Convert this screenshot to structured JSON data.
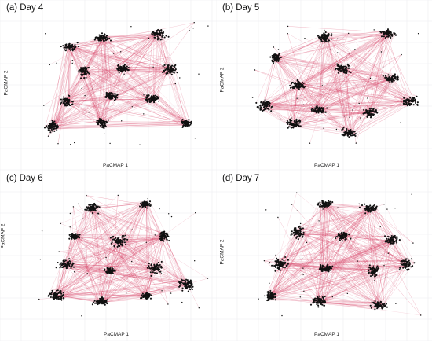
{
  "chart_data": [
    {
      "type": "scatter",
      "title": "(a) Day 4",
      "xlabel": "PaCMAP 1",
      "ylabel": "PaCMAP 2",
      "grid": true,
      "legend": "none",
      "clusters": [
        {
          "x": 0.22,
          "y": 0.78
        },
        {
          "x": 0.4,
          "y": 0.85
        },
        {
          "x": 0.72,
          "y": 0.88
        },
        {
          "x": 0.3,
          "y": 0.6
        },
        {
          "x": 0.52,
          "y": 0.62
        },
        {
          "x": 0.78,
          "y": 0.62
        },
        {
          "x": 0.2,
          "y": 0.38
        },
        {
          "x": 0.45,
          "y": 0.42
        },
        {
          "x": 0.68,
          "y": 0.4
        },
        {
          "x": 0.12,
          "y": 0.2
        },
        {
          "x": 0.4,
          "y": 0.22
        },
        {
          "x": 0.88,
          "y": 0.22
        }
      ]
    },
    {
      "type": "scatter",
      "title": "(b) Day 5",
      "xlabel": "PaCMAP 1",
      "ylabel": "PaCMAP 2",
      "grid": true,
      "legend": "none",
      "clusters": [
        {
          "x": 0.18,
          "y": 0.7
        },
        {
          "x": 0.45,
          "y": 0.85
        },
        {
          "x": 0.8,
          "y": 0.88
        },
        {
          "x": 0.3,
          "y": 0.5
        },
        {
          "x": 0.55,
          "y": 0.62
        },
        {
          "x": 0.82,
          "y": 0.55
        },
        {
          "x": 0.12,
          "y": 0.35
        },
        {
          "x": 0.42,
          "y": 0.32
        },
        {
          "x": 0.7,
          "y": 0.3
        },
        {
          "x": 0.92,
          "y": 0.38
        },
        {
          "x": 0.58,
          "y": 0.15
        },
        {
          "x": 0.28,
          "y": 0.22
        }
      ]
    },
    {
      "type": "scatter",
      "title": "(c) Day 6",
      "xlabel": "PaCMAP 1",
      "ylabel": "PaCMAP 2",
      "grid": true,
      "legend": "none",
      "clusters": [
        {
          "x": 0.35,
          "y": 0.85
        },
        {
          "x": 0.65,
          "y": 0.88
        },
        {
          "x": 0.25,
          "y": 0.65
        },
        {
          "x": 0.5,
          "y": 0.62
        },
        {
          "x": 0.75,
          "y": 0.65
        },
        {
          "x": 0.2,
          "y": 0.45
        },
        {
          "x": 0.45,
          "y": 0.4
        },
        {
          "x": 0.7,
          "y": 0.42
        },
        {
          "x": 0.15,
          "y": 0.22
        },
        {
          "x": 0.4,
          "y": 0.18
        },
        {
          "x": 0.65,
          "y": 0.22
        },
        {
          "x": 0.88,
          "y": 0.3
        }
      ]
    },
    {
      "type": "scatter",
      "title": "(d) Day 7",
      "xlabel": "PaCMAP 1",
      "ylabel": "PaCMAP 2",
      "grid": true,
      "legend": "none",
      "clusters": [
        {
          "x": 0.45,
          "y": 0.88
        },
        {
          "x": 0.7,
          "y": 0.85
        },
        {
          "x": 0.3,
          "y": 0.68
        },
        {
          "x": 0.55,
          "y": 0.65
        },
        {
          "x": 0.82,
          "y": 0.62
        },
        {
          "x": 0.2,
          "y": 0.45
        },
        {
          "x": 0.45,
          "y": 0.42
        },
        {
          "x": 0.72,
          "y": 0.4
        },
        {
          "x": 0.9,
          "y": 0.45
        },
        {
          "x": 0.15,
          "y": 0.22
        },
        {
          "x": 0.42,
          "y": 0.18
        },
        {
          "x": 0.75,
          "y": 0.15
        }
      ]
    }
  ]
}
